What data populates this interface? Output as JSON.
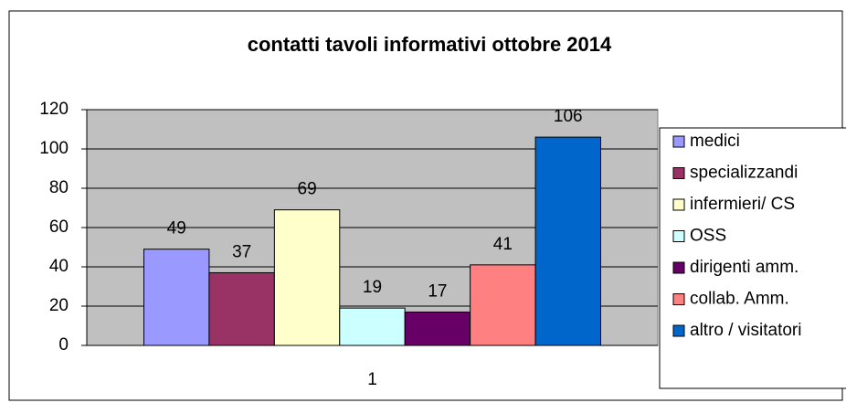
{
  "chart_data": {
    "type": "bar",
    "title": "contatti tavoli informativi ottobre 2014",
    "categories": [
      "1"
    ],
    "series": [
      {
        "name": "medici",
        "color": "#9999ff",
        "values": [
          49
        ]
      },
      {
        "name": "specializzandi",
        "color": "#993366",
        "values": [
          37
        ]
      },
      {
        "name": "infermieri/ CS",
        "color": "#ffffcc",
        "values": [
          69
        ]
      },
      {
        "name": "OSS",
        "color": "#ccffff",
        "values": [
          19
        ]
      },
      {
        "name": "dirigenti amm.",
        "color": "#660066",
        "values": [
          17
        ]
      },
      {
        "name": "collab. Amm.",
        "color": "#ff8080",
        "values": [
          41
        ]
      },
      {
        "name": "altro / visitatori",
        "color": "#0066cc",
        "values": [
          106
        ]
      }
    ],
    "ylim": [
      0,
      120
    ],
    "yticks": [
      0,
      20,
      40,
      60,
      80,
      100,
      120
    ],
    "grid": true,
    "legend": "right"
  }
}
